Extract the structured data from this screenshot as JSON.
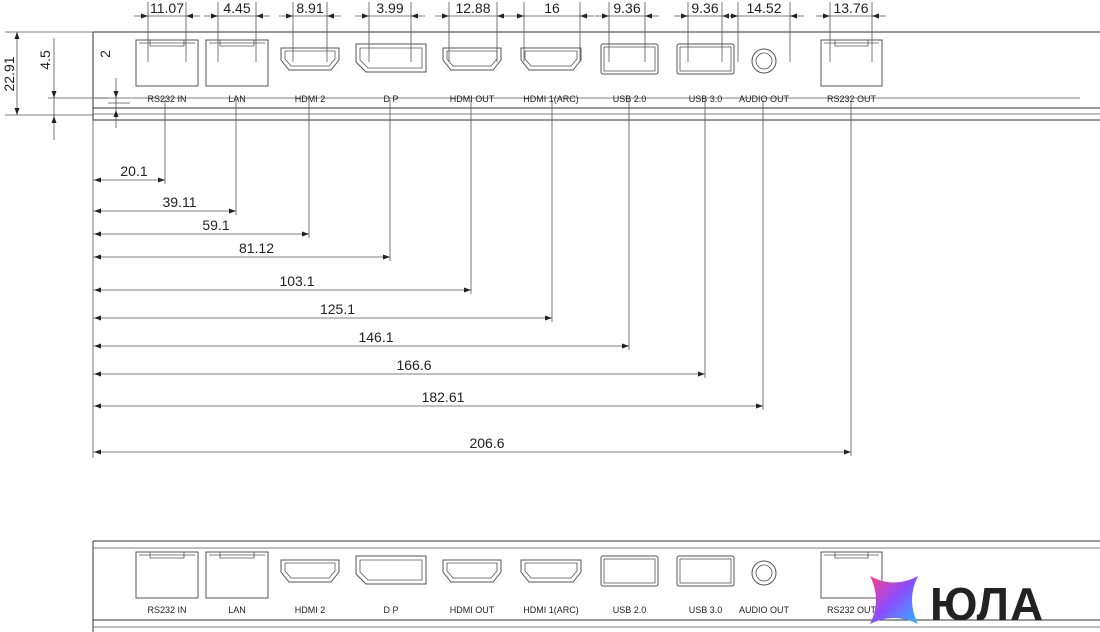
{
  "ports": [
    {
      "id": "rs232-in",
      "label": "RS232 IN",
      "type": "rj",
      "width_dim": "11.07",
      "pos_dim": "20.1"
    },
    {
      "id": "lan",
      "label": "LAN",
      "type": "rj",
      "width_dim": "4.45",
      "pos_dim": "39.11"
    },
    {
      "id": "hdmi-2",
      "label": "HDMI 2",
      "type": "hdmi",
      "width_dim": "8.91",
      "pos_dim": "59.1"
    },
    {
      "id": "dp",
      "label": "D P",
      "type": "dp",
      "width_dim": "3.99",
      "pos_dim": "81.12"
    },
    {
      "id": "hdmi-out",
      "label": "HDMI OUT",
      "type": "hdmi",
      "width_dim": "12.88",
      "pos_dim": "103.1"
    },
    {
      "id": "hdmi-1-arc",
      "label": "HDMI 1(ARC)",
      "type": "hdmi",
      "width_dim": "16",
      "pos_dim": "125.1"
    },
    {
      "id": "usb-2",
      "label": "USB 2.0",
      "type": "usb",
      "width_dim": "9.36",
      "pos_dim": "146.1"
    },
    {
      "id": "usb-3",
      "label": "USB 3.0",
      "type": "usb",
      "width_dim": "9.36",
      "pos_dim": "166.6"
    },
    {
      "id": "audio-out",
      "label": "AUDIO OUT",
      "type": "audio",
      "width_dim": "14.52",
      "pos_dim": "182.61"
    },
    {
      "id": "rs232-out",
      "label": "RS232 OUT",
      "type": "rj",
      "width_dim": "13.76",
      "pos_dim": "206.6"
    }
  ],
  "vertical_dims": {
    "height": "22.91",
    "offset": "4.5",
    "gap": "2"
  },
  "logo": {
    "text": "ЮЛА"
  }
}
